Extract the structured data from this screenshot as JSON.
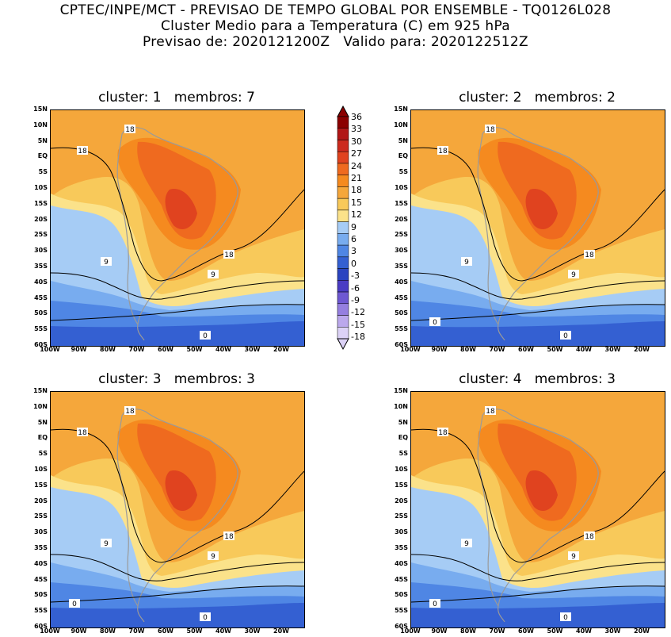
{
  "header": {
    "line1": "CPTEC/INPE/MCT - PREVISAO DE TEMPO GLOBAL POR ENSEMBLE - TQ0126L028",
    "line2": "Cluster Medio para a Temperatura (C) em 925 hPa",
    "line3": "Previsao de: 2020121200Z   Valido para: 2020122512Z"
  },
  "panels": [
    {
      "title": "cluster: 1   membros: 7",
      "contours": [
        "18",
        "18",
        "18",
        "9",
        "9",
        "0"
      ]
    },
    {
      "title": "cluster: 2   membros: 2",
      "contours": [
        "18",
        "18",
        "18",
        "9",
        "9",
        "0",
        "0"
      ]
    },
    {
      "title": "cluster: 3   membros: 3",
      "contours": [
        "18",
        "18",
        "18",
        "9",
        "9",
        "0",
        "0"
      ]
    },
    {
      "title": "cluster: 4   membros: 3",
      "contours": [
        "18",
        "18",
        "18",
        "9",
        "9",
        "0",
        "0"
      ]
    }
  ],
  "lat_labels": [
    "15N",
    "10N",
    "5N",
    "EQ",
    "5S",
    "10S",
    "15S",
    "20S",
    "25S",
    "30S",
    "35S",
    "40S",
    "45S",
    "50S",
    "55S",
    "60S"
  ],
  "lon_labels": [
    "100W",
    "90W",
    "80W",
    "70W",
    "60W",
    "50W",
    "40W",
    "30W",
    "20W"
  ],
  "colorbar": {
    "labels": [
      "36",
      "33",
      "30",
      "27",
      "24",
      "21",
      "18",
      "15",
      "12",
      "9",
      "6",
      "3",
      "0",
      "-3",
      "-6",
      "-9",
      "-12",
      "-15",
      "-18"
    ],
    "colors": [
      "#8b0000",
      "#b11616",
      "#cc2a1e",
      "#e0431f",
      "#ef6a1f",
      "#f58a1f",
      "#f5a73b",
      "#f8c95a",
      "#fbe28a",
      "#a6ccf5",
      "#78acef",
      "#4f86e4",
      "#3460d2",
      "#2a44c0",
      "#4a3cc4",
      "#6e58d2",
      "#957fe0",
      "#bba8ec",
      "#dcd2f6"
    ]
  }
}
